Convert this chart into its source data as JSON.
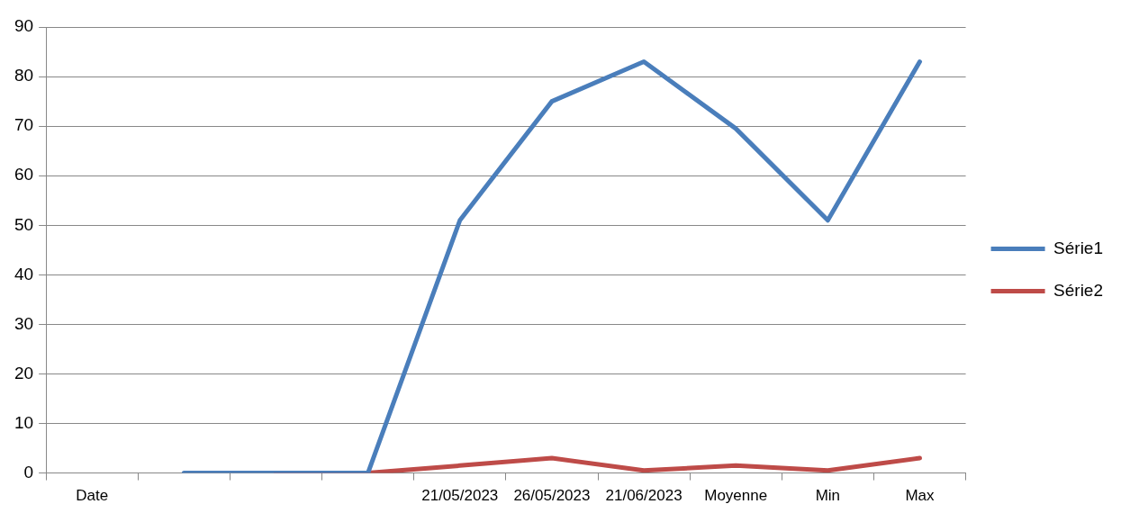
{
  "chart_data": {
    "type": "line",
    "categories": [
      "Date",
      null,
      null,
      null,
      "21/05/2023",
      "26/05/2023",
      "21/06/2023",
      "Moyenne",
      "Min",
      "Max"
    ],
    "series": [
      {
        "name": "Série1",
        "color": "#4a7ebb",
        "values": [
          null,
          0,
          0,
          0,
          51,
          75,
          83,
          69.5,
          51,
          83
        ]
      },
      {
        "name": "Série2",
        "color": "#be4b48",
        "values": [
          null,
          null,
          0,
          0,
          1.5,
          3,
          0.5,
          1.5,
          0.5,
          3
        ]
      }
    ],
    "ylim": [
      0,
      90
    ],
    "yticks": [
      0,
      10,
      20,
      30,
      40,
      50,
      60,
      70,
      80,
      90
    ],
    "grid": "y",
    "legend": "right",
    "marker": "none",
    "line_style": "solid"
  }
}
